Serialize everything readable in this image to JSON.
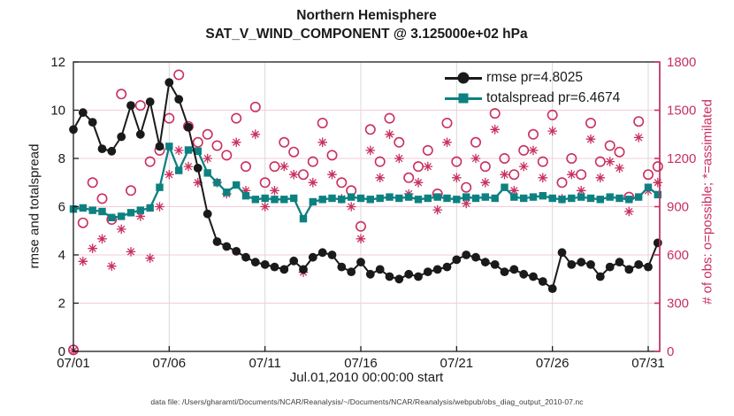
{
  "figure": {
    "title_line1": "Northern Hemisphere",
    "title_line2": "SAT_V_WIND_COMPONENT @ 3.125000e+02 hPa",
    "caption": "data file: /Users/gharamti/Documents/NCAR/Reanalysis/~/Documents/NCAR/Reanalysis/webpub/obs_diag_output_2010-07.nc"
  },
  "axes": {
    "left_label": "rmse and totalspread",
    "right_label": "# of obs: o=possible; *=assimilated",
    "x_label": "Jul.01,2010 00:00:00 start"
  },
  "legend": {
    "items": [
      {
        "label": "rmse pr=4.8025",
        "series": "rmse"
      },
      {
        "label": "totalspread pr=6.4674",
        "series": "totalspread"
      }
    ]
  },
  "colors": {
    "rmse": "#1a1a1a",
    "totalspread": "#0d8181",
    "obs": "#c9305f",
    "grid_h": "#f3cdd9",
    "grid_v": "#dcd7d7",
    "spine": "#1a1a1a"
  },
  "chart_data": {
    "type": "line",
    "title": "Northern Hemisphere / SAT_V_WIND_COMPONENT @ 3.125000e+02 hPa",
    "x_unit": "day of July 2010, 12-hourly bins",
    "x_start_day": 1.0,
    "x_step_days": 0.5,
    "xlim": [
      1.0,
      31.6
    ],
    "x_ticks": [
      {
        "day": 1,
        "label": "07/01"
      },
      {
        "day": 6,
        "label": "07/06"
      },
      {
        "day": 11,
        "label": "07/11"
      },
      {
        "day": 16,
        "label": "07/16"
      },
      {
        "day": 21,
        "label": "07/21"
      },
      {
        "day": 26,
        "label": "07/26"
      },
      {
        "day": 31,
        "label": "07/31"
      }
    ],
    "left_axis": {
      "label": "rmse and totalspread",
      "min": 0,
      "max": 12,
      "ticks": [
        0,
        2,
        4,
        6,
        8,
        10,
        12
      ]
    },
    "right_axis": {
      "label": "# of obs: o=possible; *=assimilated",
      "min": 0,
      "max": 1800,
      "ticks": [
        0,
        300,
        600,
        900,
        1200,
        1500,
        1800
      ]
    },
    "grid": true,
    "legend_position": "top-right-inside",
    "series": [
      {
        "name": "rmse",
        "axis": "left",
        "style": "line+filled-circle",
        "values": [
          9.2,
          9.9,
          9.5,
          8.4,
          8.3,
          8.9,
          10.2,
          9.0,
          10.35,
          8.5,
          11.15,
          10.45,
          9.3,
          7.6,
          5.7,
          4.55,
          4.35,
          4.15,
          3.9,
          3.7,
          3.6,
          3.5,
          3.4,
          3.75,
          3.4,
          3.9,
          4.1,
          4.0,
          3.5,
          3.3,
          3.7,
          3.2,
          3.4,
          3.1,
          3.0,
          3.2,
          3.1,
          3.3,
          3.4,
          3.5,
          3.8,
          4.0,
          3.9,
          3.7,
          3.6,
          3.3,
          3.4,
          3.2,
          3.1,
          2.9,
          2.6,
          4.1,
          3.6,
          3.7,
          3.6,
          3.1,
          3.5,
          3.7,
          3.4,
          3.6,
          3.5,
          4.5
        ]
      },
      {
        "name": "totalspread",
        "axis": "left",
        "style": "line+filled-square",
        "values": [
          5.9,
          5.95,
          5.85,
          5.8,
          5.55,
          5.6,
          5.75,
          5.85,
          5.95,
          6.8,
          8.5,
          7.5,
          8.35,
          8.3,
          7.4,
          7.0,
          6.6,
          6.9,
          6.45,
          6.3,
          6.35,
          6.3,
          6.3,
          6.35,
          5.5,
          6.2,
          6.3,
          6.35,
          6.3,
          6.4,
          6.35,
          6.3,
          6.35,
          6.4,
          6.35,
          6.4,
          6.3,
          6.35,
          6.4,
          6.35,
          6.3,
          6.4,
          6.35,
          6.4,
          6.35,
          6.8,
          6.4,
          6.35,
          6.4,
          6.45,
          6.35,
          6.3,
          6.35,
          6.4,
          6.35,
          6.3,
          6.4,
          6.35,
          6.3,
          6.4,
          6.8,
          6.5
        ]
      },
      {
        "name": "possible",
        "axis": "right",
        "style": "open-circle-scatter",
        "values": [
          10,
          800,
          1050,
          950,
          820,
          1600,
          1000,
          1530,
          1180,
          1250,
          1450,
          1720,
          1400,
          1300,
          1350,
          1280,
          1220,
          1450,
          1150,
          1520,
          1050,
          1150,
          1300,
          1240,
          1100,
          1180,
          1420,
          1220,
          1050,
          1000,
          777,
          1380,
          1180,
          1450,
          1300,
          1080,
          1150,
          1250,
          980,
          1420,
          1180,
          1020,
          1300,
          1150,
          1480,
          1200,
          1100,
          1250,
          1350,
          1180,
          1470,
          1050,
          1200,
          1100,
          1420,
          1180,
          1280,
          1240,
          960,
          1430,
          1100,
          1150
        ]
      },
      {
        "name": "assimilated",
        "axis": "right",
        "style": "asterisk-scatter",
        "values": [
          5,
          560,
          640,
          700,
          530,
          760,
          620,
          840,
          580,
          900,
          1100,
          1250,
          1150,
          1050,
          1200,
          1050,
          980,
          1300,
          1000,
          1350,
          900,
          1000,
          1150,
          1100,
          492,
          1050,
          1300,
          1100,
          950,
          900,
          700,
          1250,
          1080,
          1350,
          1200,
          980,
          1050,
          1150,
          880,
          1300,
          1080,
          920,
          1200,
          1050,
          1380,
          1100,
          1000,
          1150,
          1250,
          1080,
          1370,
          950,
          1100,
          1000,
          1320,
          1080,
          1180,
          1140,
          870,
          1330,
          1000,
          1050
        ]
      }
    ]
  }
}
